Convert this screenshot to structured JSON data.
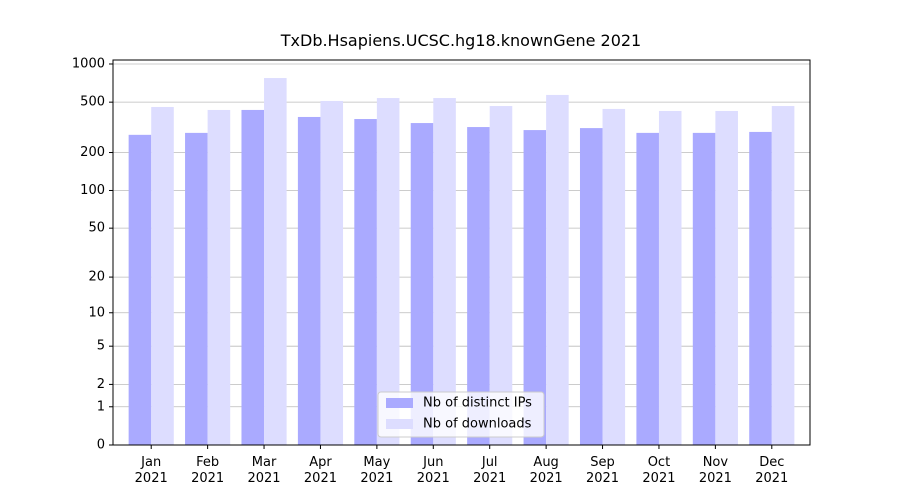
{
  "chart_data": {
    "type": "bar",
    "title": "TxDb.Hsapiens.UCSC.hg18.knownGene 2021",
    "categories": [
      "Jan 2021",
      "Feb 2021",
      "Mar 2021",
      "Apr 2021",
      "May 2021",
      "Jun 2021",
      "Jul 2021",
      "Aug 2021",
      "Sep 2021",
      "Oct 2021",
      "Nov 2021",
      "Dec 2021"
    ],
    "series": [
      {
        "name": "Nb of distinct IPs",
        "color": "#aaaaff",
        "values": [
          276,
          286,
          434,
          382,
          368,
          342,
          318,
          301,
          312,
          286,
          286,
          291
        ]
      },
      {
        "name": "Nb of downloads",
        "color": "#ddddff",
        "values": [
          458,
          434,
          775,
          511,
          539,
          539,
          466,
          570,
          442,
          426,
          426,
          466
        ]
      }
    ],
    "ylim": [
      0,
      1075
    ],
    "yticks": [
      0,
      1,
      2,
      5,
      10,
      20,
      50,
      100,
      200,
      500,
      1000
    ],
    "log_scale": true,
    "grid": true,
    "legend": "lower center"
  }
}
